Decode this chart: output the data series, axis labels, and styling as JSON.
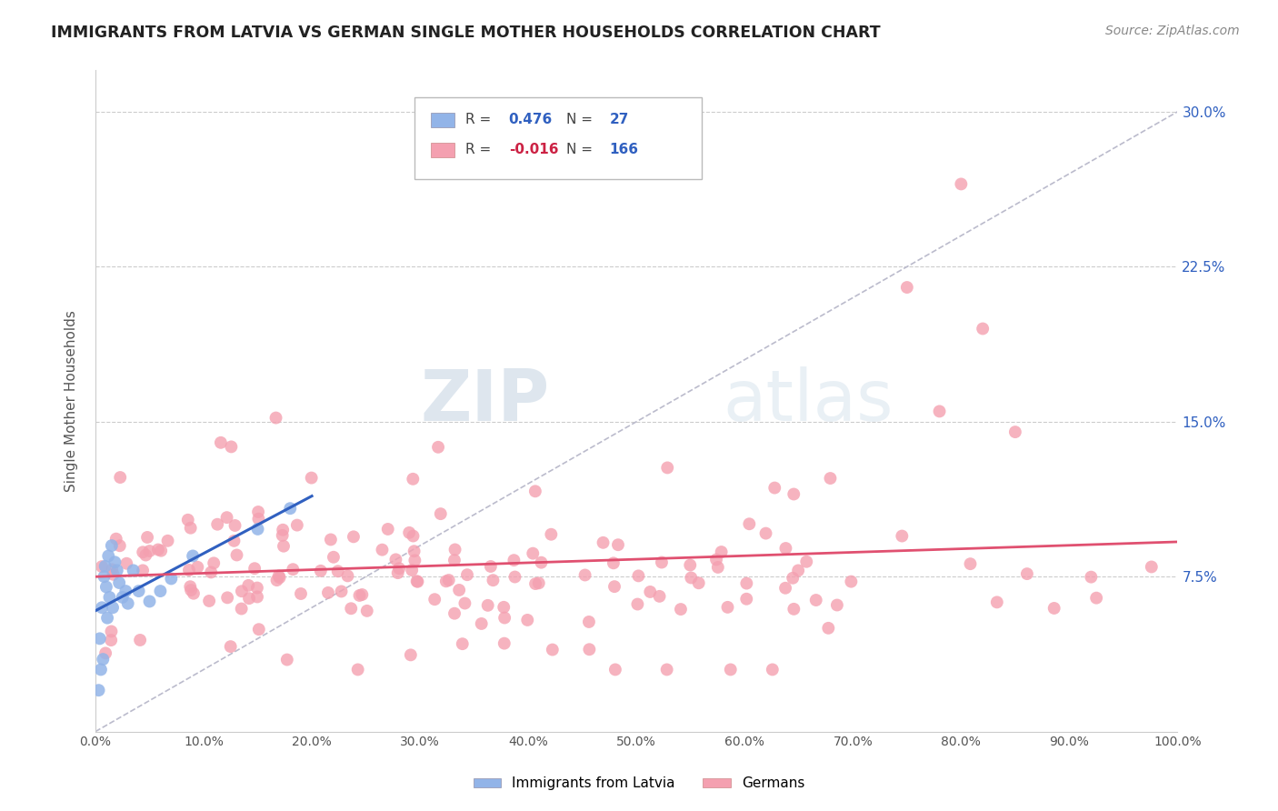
{
  "title": "IMMIGRANTS FROM LATVIA VS GERMAN SINGLE MOTHER HOUSEHOLDS CORRELATION CHART",
  "source": "Source: ZipAtlas.com",
  "ylabel": "Single Mother Households",
  "legend_labels": [
    "Immigrants from Latvia",
    "Germans"
  ],
  "r_latvia": 0.476,
  "n_latvia": 27,
  "r_german": -0.016,
  "n_german": 166,
  "color_latvia": "#92b4e8",
  "color_german": "#f4a0b0",
  "color_trendline_latvia": "#3060c0",
  "color_trendline_german": "#e05070",
  "xlim": [
    0.0,
    1.0
  ],
  "ylim": [
    0.0,
    0.32
  ],
  "xticks": [
    0.0,
    0.1,
    0.2,
    0.3,
    0.4,
    0.5,
    0.6,
    0.7,
    0.8,
    0.9,
    1.0
  ],
  "yticks": [
    0.075,
    0.15,
    0.225,
    0.3
  ],
  "ytick_labels": [
    "7.5%",
    "15.0%",
    "22.5%",
    "30.0%"
  ],
  "xtick_labels": [
    "0.0%",
    "10.0%",
    "20.0%",
    "30.0%",
    "40.0%",
    "50.0%",
    "60.0%",
    "70.0%",
    "80.0%",
    "90.0%",
    "100.0%"
  ],
  "watermark_zip": "ZIP",
  "watermark_atlas": "atlas",
  "ref_line_color": "#bbbbcc",
  "grid_color": "#cccccc"
}
